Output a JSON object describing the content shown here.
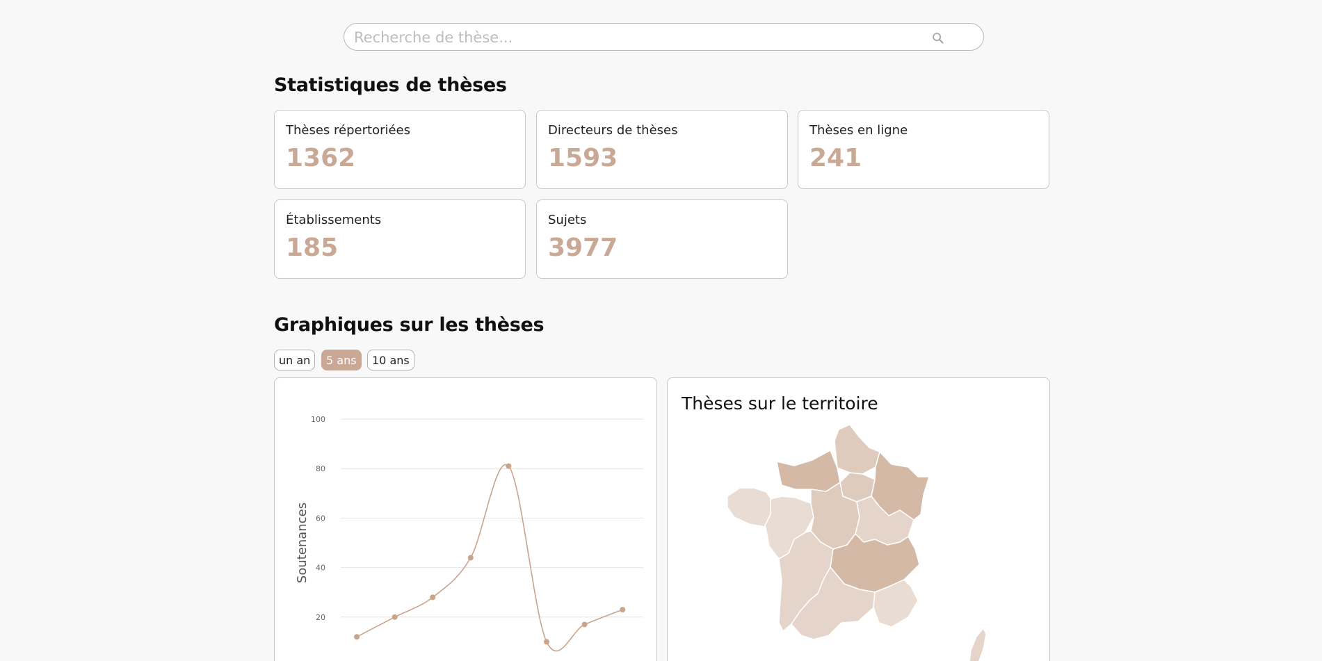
{
  "search": {
    "placeholder": "Recherche de thèse..."
  },
  "stats_section": {
    "title": "Statistiques de thèses",
    "cards": [
      {
        "label": "Thèses répertoriées",
        "value": "1362"
      },
      {
        "label": "Directeurs de thèses",
        "value": "1593"
      },
      {
        "label": "Thèses en ligne",
        "value": "241"
      },
      {
        "label": "Établissements",
        "value": "185"
      },
      {
        "label": "Sujets",
        "value": "3977"
      }
    ]
  },
  "charts_section": {
    "title": "Graphiques sur les thèses",
    "ranges": [
      {
        "label": "un an",
        "active": false
      },
      {
        "label": "5 ans",
        "active": true
      },
      {
        "label": "10 ans",
        "active": false
      }
    ]
  },
  "map_panel": {
    "title": "Thèses sur le territoire"
  },
  "colors": {
    "accent": "#c9a995",
    "line": "#c9a48d",
    "region_light": "#e9dcd3",
    "region_mid": "#dfcbbe",
    "region_dark": "#d4b9a6"
  },
  "chart_data": {
    "type": "line",
    "title": "",
    "xlabel": "",
    "ylabel": "Soutenances",
    "ylim": [
      0,
      100
    ],
    "y_ticks": [
      "20",
      "40",
      "60",
      "80",
      "100"
    ],
    "grid": true,
    "smooth": true,
    "series": [
      {
        "values": [
          12,
          20,
          28,
          44,
          81,
          10,
          17,
          23
        ]
      }
    ]
  }
}
